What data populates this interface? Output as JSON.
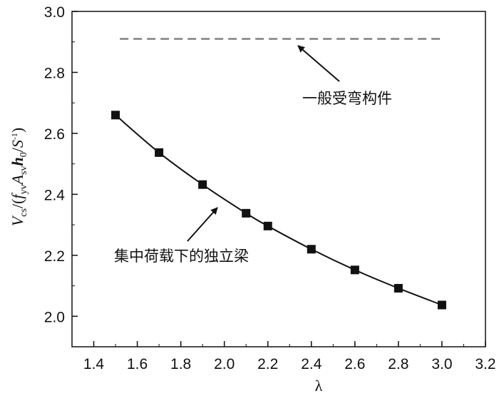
{
  "chart_data": {
    "type": "line",
    "xlabel": "λ",
    "ylabel": {
      "V": "V",
      "cs": "cs",
      "slash1": "/(",
      "f": "f",
      "yv": "yv",
      "A": "A",
      "sv": "sv",
      "h": "h",
      "zero": "0",
      "slash2": "/",
      "S": "S",
      "minus1": "-1",
      "close": ")"
    },
    "xlim": [
      1.3,
      3.2
    ],
    "ylim": [
      1.9,
      3.0
    ],
    "x_ticks": [
      "1.4",
      "1.6",
      "1.8",
      "2.0",
      "2.2",
      "2.4",
      "2.6",
      "2.8",
      "3.0",
      "3.2"
    ],
    "y_ticks": [
      "2.0",
      "2.2",
      "2.4",
      "2.6",
      "2.8",
      "3.0"
    ],
    "series": [
      {
        "x": [
          1.5,
          1.7,
          1.9,
          2.1,
          2.2,
          2.4,
          2.6,
          2.8,
          3.0
        ],
        "y": [
          2.66,
          2.537,
          2.432,
          2.338,
          2.296,
          2.22,
          2.152,
          2.092,
          2.037
        ],
        "marker": "square",
        "color": "#111111"
      },
      {
        "x": [
          1.52,
          3.0
        ],
        "y": [
          2.91,
          2.91
        ],
        "style": "dashed",
        "color": "#808080"
      }
    ],
    "annotations": [
      {
        "text": "一般受弯构件",
        "arrow_tip": [
          2.32,
          2.9
        ]
      },
      {
        "text": "集中荷载下的独立梁",
        "arrow_tip": [
          2.0,
          2.37
        ]
      }
    ]
  }
}
